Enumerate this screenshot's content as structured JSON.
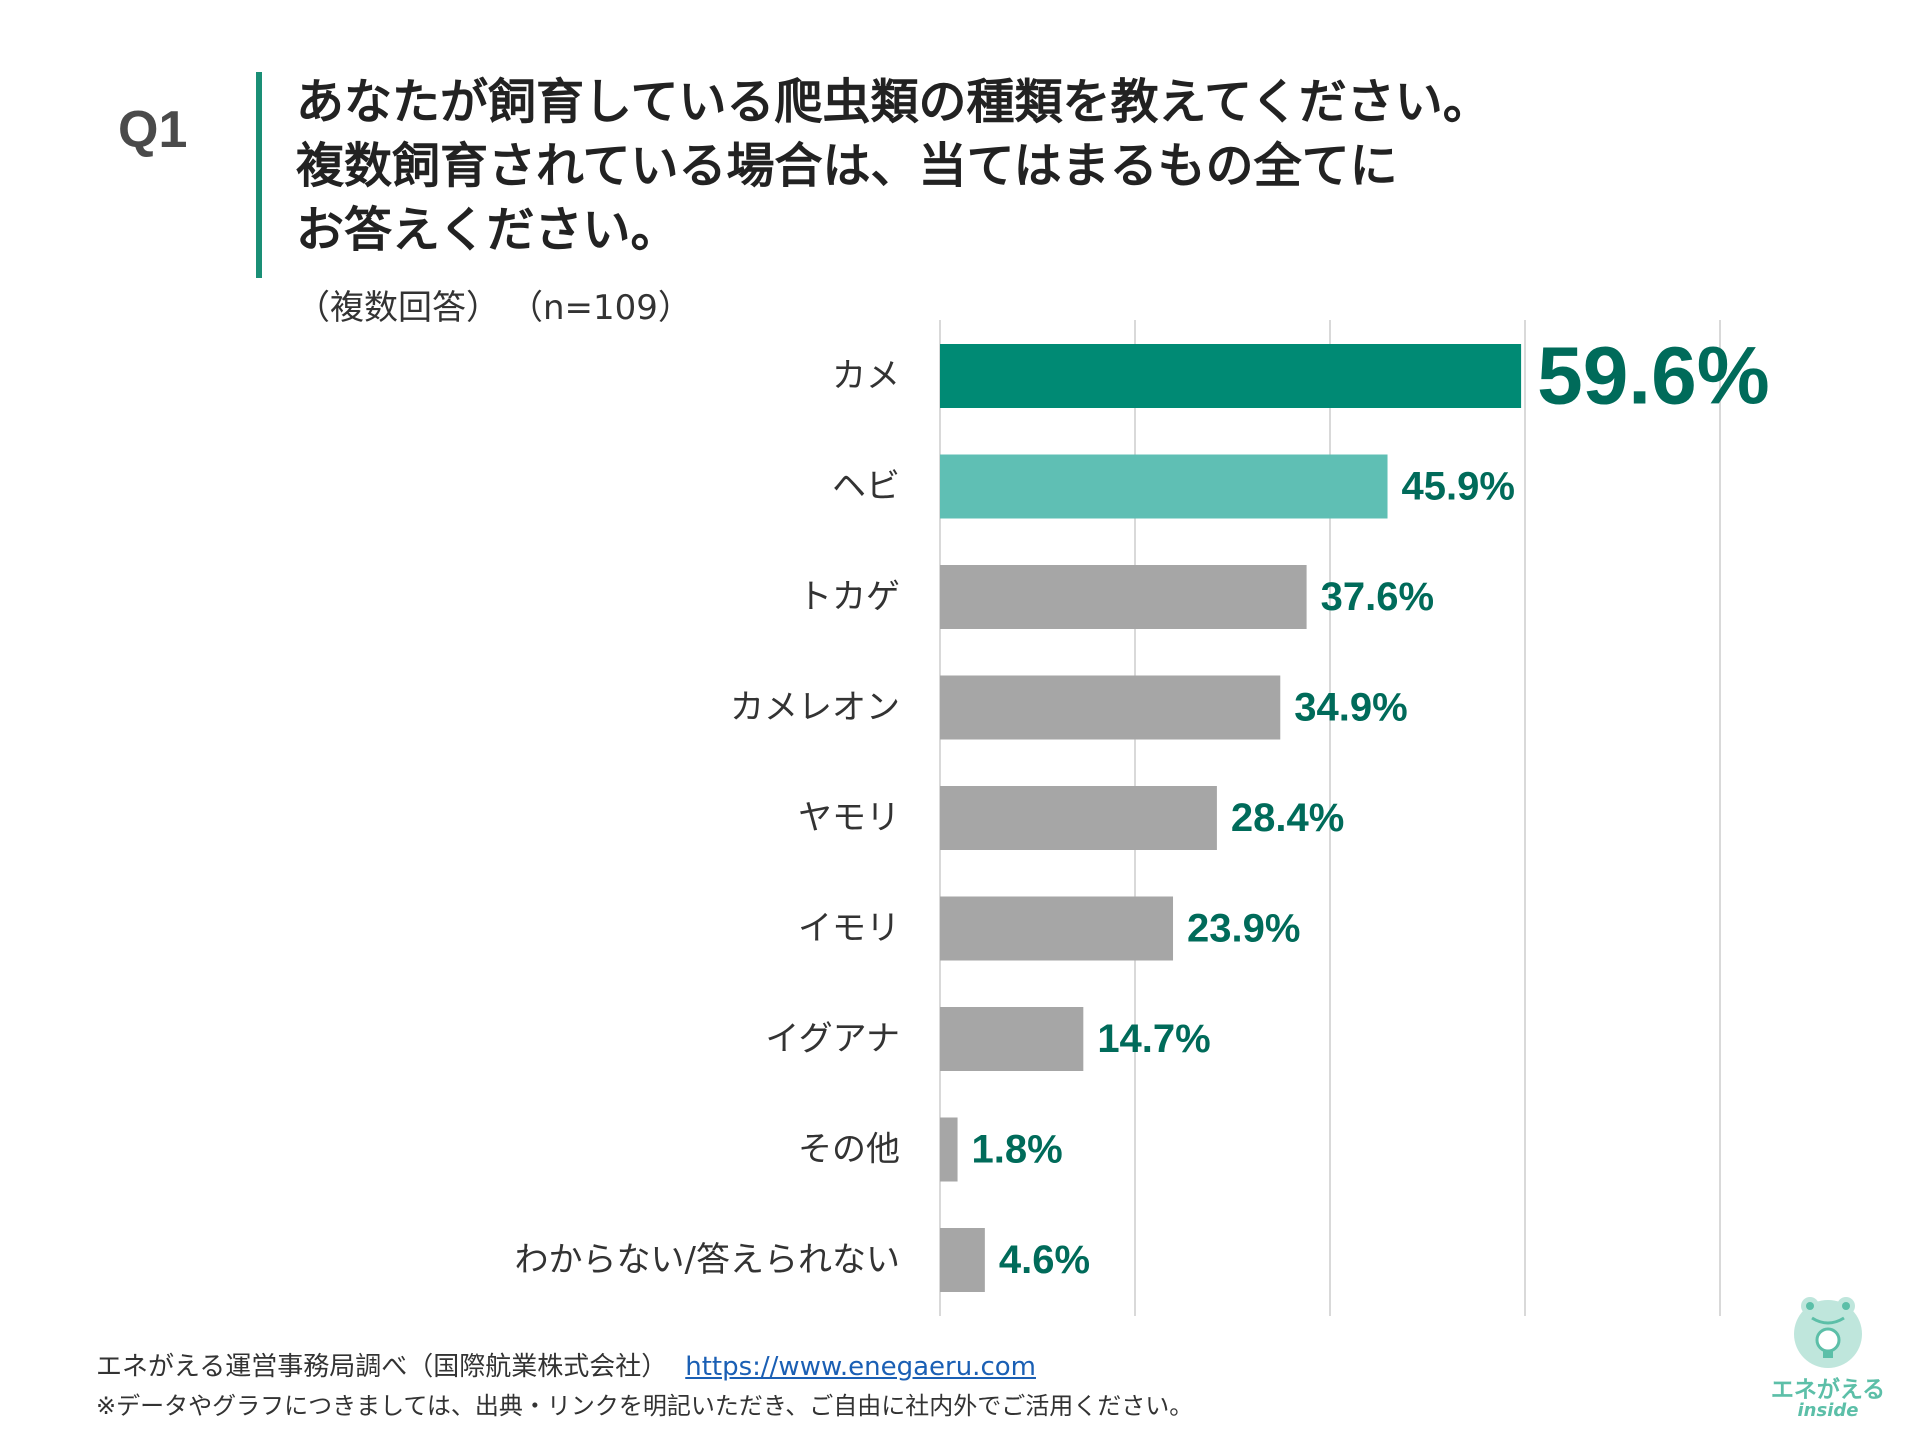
{
  "header": {
    "q_label": "Q1",
    "question_lines": [
      "あなたが飼育している爬虫類の種類を教えてください。",
      "複数飼育されている場合は、当てはまるもの全てに",
      "お答えください。"
    ],
    "answer_type": "（複数回答）",
    "sample": "（n=109）"
  },
  "chart_data": {
    "type": "bar",
    "orientation": "horizontal",
    "categories": [
      "カメ",
      "ヘビ",
      "トカゲ",
      "カメレオン",
      "ヤモリ",
      "イモリ",
      "イグアナ",
      "その他",
      "わからない/答えられない"
    ],
    "values": [
      59.6,
      45.9,
      37.6,
      34.9,
      28.4,
      23.9,
      14.7,
      1.8,
      4.6
    ],
    "data_labels": [
      "59.6%",
      "45.9%",
      "37.6%",
      "34.9%",
      "28.4%",
      "23.9%",
      "14.7%",
      "1.8%",
      "4.6%"
    ],
    "xlim": [
      0,
      80
    ],
    "gridlines": [
      0,
      20,
      40,
      60,
      80
    ],
    "grid": true,
    "colors": {
      "top1": "#008a74",
      "top2": "#5fbfb4",
      "others": "#a6a6a6",
      "label": "#006b5a",
      "grid": "#d9d9d9"
    }
  },
  "footer": {
    "source": "エネがえる運営事務局調べ（国際航業株式会社）",
    "url": "https://www.enegaeru.com",
    "note": "※データやグラフにつきましては、出典・リンクを明記いただき、ご自由に社内外でご活用ください。"
  },
  "logo": {
    "brand": "エネがえる",
    "sub": "inside",
    "icon": "frog-lightbulb-icon"
  }
}
